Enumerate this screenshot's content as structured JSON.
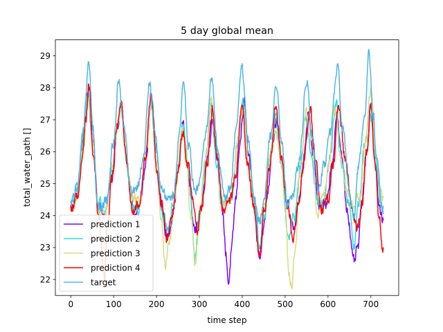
{
  "chart_data": {
    "type": "line",
    "title": "5 day global mean",
    "xlabel": "time step",
    "ylabel": "total_water_path []",
    "xlim": [
      -36,
      765
    ],
    "ylim": [
      21.5,
      29.5
    ],
    "xticks": [
      0,
      100,
      200,
      300,
      400,
      500,
      600,
      700
    ],
    "yticks": [
      22,
      23,
      24,
      25,
      26,
      27,
      28,
      29
    ],
    "xtick_labels": [
      "0",
      "100",
      "200",
      "300",
      "400",
      "500",
      "600",
      "700"
    ],
    "ytick_labels": [
      "22",
      "23",
      "24",
      "25",
      "26",
      "27",
      "28",
      "29"
    ],
    "legend_position": "lower-left",
    "grid": false,
    "n_points": 730,
    "series": [
      {
        "name": "prediction 1",
        "color": "#8000ff",
        "anchors": [
          [
            0,
            24.2
          ],
          [
            15,
            24.6
          ],
          [
            30,
            26.3
          ],
          [
            40,
            27.9
          ],
          [
            50,
            26.5
          ],
          [
            65,
            24.3
          ],
          [
            80,
            24.0
          ],
          [
            95,
            25.2
          ],
          [
            110,
            26.8
          ],
          [
            118,
            27.4
          ],
          [
            130,
            25.8
          ],
          [
            140,
            24.6
          ],
          [
            150,
            24.0
          ],
          [
            165,
            24.4
          ],
          [
            175,
            25.8
          ],
          [
            188,
            27.6
          ],
          [
            198,
            26.2
          ],
          [
            212,
            24.2
          ],
          [
            225,
            23.3
          ],
          [
            240,
            24.2
          ],
          [
            250,
            25.4
          ],
          [
            262,
            26.9
          ],
          [
            272,
            25.6
          ],
          [
            285,
            23.9
          ],
          [
            295,
            23.6
          ],
          [
            305,
            24.3
          ],
          [
            320,
            25.9
          ],
          [
            330,
            27.0
          ],
          [
            340,
            25.9
          ],
          [
            355,
            24.0
          ],
          [
            362,
            22.8
          ],
          [
            368,
            21.9
          ],
          [
            375,
            22.9
          ],
          [
            385,
            24.5
          ],
          [
            395,
            26.4
          ],
          [
            405,
            27.5
          ],
          [
            415,
            25.7
          ],
          [
            425,
            24.5
          ],
          [
            440,
            22.8
          ],
          [
            450,
            23.6
          ],
          [
            460,
            24.8
          ],
          [
            470,
            26.3
          ],
          [
            480,
            27.0
          ],
          [
            490,
            25.6
          ],
          [
            505,
            24.3
          ],
          [
            520,
            23.6
          ],
          [
            530,
            24.2
          ],
          [
            545,
            25.9
          ],
          [
            555,
            27.3
          ],
          [
            565,
            25.9
          ],
          [
            580,
            24.2
          ],
          [
            595,
            24.4
          ],
          [
            610,
            25.6
          ],
          [
            620,
            27.2
          ],
          [
            632,
            25.8
          ],
          [
            645,
            24.2
          ],
          [
            660,
            22.5
          ],
          [
            670,
            23.0
          ],
          [
            680,
            24.5
          ],
          [
            690,
            26.0
          ],
          [
            700,
            27.5
          ],
          [
            710,
            25.7
          ],
          [
            720,
            24.2
          ],
          [
            728,
            23.8
          ]
        ]
      },
      {
        "name": "prediction 2",
        "color": "#2adddd",
        "anchors": [
          [
            0,
            24.3
          ],
          [
            15,
            24.8
          ],
          [
            30,
            26.6
          ],
          [
            40,
            27.7
          ],
          [
            50,
            26.4
          ],
          [
            65,
            24.4
          ],
          [
            80,
            24.1
          ],
          [
            95,
            25.3
          ],
          [
            110,
            26.9
          ],
          [
            118,
            27.5
          ],
          [
            130,
            25.7
          ],
          [
            145,
            24.3
          ],
          [
            160,
            24.2
          ],
          [
            175,
            25.9
          ],
          [
            188,
            27.7
          ],
          [
            200,
            25.9
          ],
          [
            215,
            24.0
          ],
          [
            228,
            23.6
          ],
          [
            240,
            24.4
          ],
          [
            252,
            25.7
          ],
          [
            262,
            26.8
          ],
          [
            275,
            25.4
          ],
          [
            290,
            22.6
          ],
          [
            300,
            24.0
          ],
          [
            315,
            25.8
          ],
          [
            328,
            27.5
          ],
          [
            340,
            25.6
          ],
          [
            352,
            24.5
          ],
          [
            362,
            24.4
          ],
          [
            375,
            24.5
          ],
          [
            390,
            26.3
          ],
          [
            402,
            27.6
          ],
          [
            415,
            25.6
          ],
          [
            430,
            24.2
          ],
          [
            440,
            23.0
          ],
          [
            452,
            24.0
          ],
          [
            465,
            25.9
          ],
          [
            478,
            27.0
          ],
          [
            492,
            25.6
          ],
          [
            508,
            23.2
          ],
          [
            522,
            24.0
          ],
          [
            535,
            25.5
          ],
          [
            548,
            27.1
          ],
          [
            562,
            25.8
          ],
          [
            575,
            24.5
          ],
          [
            590,
            24.4
          ],
          [
            605,
            25.8
          ],
          [
            618,
            27.6
          ],
          [
            632,
            25.6
          ],
          [
            648,
            24.4
          ],
          [
            660,
            23.0
          ],
          [
            672,
            24.3
          ],
          [
            685,
            26.2
          ],
          [
            698,
            27.4
          ],
          [
            712,
            25.6
          ],
          [
            722,
            24.4
          ],
          [
            728,
            24.2
          ]
        ]
      },
      {
        "name": "prediction 3",
        "color": "#d4dd80",
        "anchors": [
          [
            0,
            24.2
          ],
          [
            15,
            24.5
          ],
          [
            30,
            26.2
          ],
          [
            40,
            27.6
          ],
          [
            50,
            26.5
          ],
          [
            65,
            24.1
          ],
          [
            80,
            24.2
          ],
          [
            95,
            25.4
          ],
          [
            110,
            26.9
          ],
          [
            118,
            27.3
          ],
          [
            130,
            25.8
          ],
          [
            145,
            24.5
          ],
          [
            160,
            24.4
          ],
          [
            175,
            25.9
          ],
          [
            188,
            27.5
          ],
          [
            200,
            25.6
          ],
          [
            212,
            23.8
          ],
          [
            220,
            22.4
          ],
          [
            230,
            23.2
          ],
          [
            245,
            24.6
          ],
          [
            258,
            26.6
          ],
          [
            268,
            26.3
          ],
          [
            280,
            24.0
          ],
          [
            290,
            22.4
          ],
          [
            300,
            23.9
          ],
          [
            315,
            25.9
          ],
          [
            328,
            27.7
          ],
          [
            340,
            26.1
          ],
          [
            352,
            24.5
          ],
          [
            362,
            24.4
          ],
          [
            375,
            24.6
          ],
          [
            390,
            26.4
          ],
          [
            402,
            27.4
          ],
          [
            415,
            25.6
          ],
          [
            428,
            24.4
          ],
          [
            440,
            24.0
          ],
          [
            452,
            24.3
          ],
          [
            465,
            25.9
          ],
          [
            478,
            26.6
          ],
          [
            490,
            25.8
          ],
          [
            500,
            24.4
          ],
          [
            508,
            22.2
          ],
          [
            515,
            21.8
          ],
          [
            522,
            22.6
          ],
          [
            535,
            25.2
          ],
          [
            548,
            27.3
          ],
          [
            562,
            26.2
          ],
          [
            575,
            24.1
          ],
          [
            588,
            24.6
          ],
          [
            602,
            25.6
          ],
          [
            615,
            27.4
          ],
          [
            630,
            25.8
          ],
          [
            645,
            24.6
          ],
          [
            660,
            24.3
          ],
          [
            675,
            24.7
          ],
          [
            688,
            26.4
          ],
          [
            700,
            28.0
          ],
          [
            712,
            25.9
          ],
          [
            722,
            24.8
          ],
          [
            728,
            24.6
          ]
        ]
      },
      {
        "name": "prediction 4",
        "color": "#ff0000",
        "anchors": [
          [
            0,
            24.2
          ],
          [
            15,
            24.6
          ],
          [
            25,
            25.6
          ],
          [
            35,
            27.0
          ],
          [
            42,
            28.2
          ],
          [
            52,
            26.0
          ],
          [
            65,
            24.0
          ],
          [
            78,
            22.0
          ],
          [
            85,
            23.7
          ],
          [
            95,
            25.0
          ],
          [
            108,
            26.8
          ],
          [
            118,
            27.6
          ],
          [
            130,
            25.7
          ],
          [
            145,
            24.1
          ],
          [
            158,
            24.4
          ],
          [
            172,
            25.6
          ],
          [
            188,
            27.8
          ],
          [
            200,
            25.6
          ],
          [
            212,
            24.5
          ],
          [
            225,
            23.3
          ],
          [
            238,
            24.2
          ],
          [
            250,
            25.4
          ],
          [
            262,
            26.6
          ],
          [
            272,
            25.6
          ],
          [
            285,
            24.5
          ],
          [
            295,
            23.4
          ],
          [
            305,
            24.3
          ],
          [
            318,
            25.6
          ],
          [
            330,
            27.3
          ],
          [
            342,
            25.8
          ],
          [
            355,
            24.2
          ],
          [
            370,
            24.4
          ],
          [
            385,
            25.3
          ],
          [
            400,
            27.6
          ],
          [
            412,
            25.6
          ],
          [
            428,
            24.2
          ],
          [
            440,
            22.7
          ],
          [
            452,
            24.2
          ],
          [
            465,
            25.6
          ],
          [
            478,
            27.5
          ],
          [
            492,
            25.7
          ],
          [
            505,
            24.3
          ],
          [
            520,
            23.4
          ],
          [
            532,
            24.4
          ],
          [
            545,
            25.8
          ],
          [
            558,
            27.3
          ],
          [
            572,
            25.6
          ],
          [
            585,
            24.2
          ],
          [
            600,
            24.5
          ],
          [
            612,
            25.5
          ],
          [
            625,
            27.4
          ],
          [
            640,
            25.8
          ],
          [
            655,
            24.4
          ],
          [
            668,
            23.6
          ],
          [
            680,
            24.4
          ],
          [
            690,
            26.0
          ],
          [
            700,
            27.5
          ],
          [
            710,
            25.6
          ],
          [
            720,
            23.8
          ],
          [
            728,
            23.0
          ]
        ]
      },
      {
        "name": "target",
        "color": "#4fb5e6",
        "anchors": [
          [
            0,
            24.3
          ],
          [
            15,
            24.9
          ],
          [
            28,
            26.6
          ],
          [
            42,
            28.7
          ],
          [
            52,
            26.8
          ],
          [
            62,
            24.3
          ],
          [
            72,
            24.2
          ],
          [
            85,
            24.6
          ],
          [
            100,
            26.3
          ],
          [
            112,
            28.2
          ],
          [
            125,
            26.6
          ],
          [
            140,
            24.8
          ],
          [
            155,
            24.9
          ],
          [
            170,
            25.9
          ],
          [
            183,
            28.2
          ],
          [
            195,
            26.6
          ],
          [
            210,
            25.0
          ],
          [
            225,
            24.4
          ],
          [
            240,
            24.6
          ],
          [
            253,
            26.5
          ],
          [
            262,
            28.2
          ],
          [
            275,
            26.2
          ],
          [
            290,
            24.6
          ],
          [
            300,
            25.0
          ],
          [
            315,
            26.6
          ],
          [
            328,
            28.4
          ],
          [
            342,
            26.1
          ],
          [
            358,
            24.6
          ],
          [
            372,
            24.8
          ],
          [
            385,
            26.6
          ],
          [
            400,
            28.6
          ],
          [
            412,
            26.6
          ],
          [
            428,
            24.5
          ],
          [
            440,
            23.8
          ],
          [
            452,
            24.6
          ],
          [
            465,
            26.5
          ],
          [
            480,
            28.1
          ],
          [
            492,
            26.4
          ],
          [
            505,
            24.4
          ],
          [
            518,
            24.6
          ],
          [
            532,
            25.6
          ],
          [
            550,
            28.3
          ],
          [
            562,
            26.6
          ],
          [
            578,
            24.9
          ],
          [
            592,
            25.6
          ],
          [
            605,
            26.6
          ],
          [
            622,
            28.6
          ],
          [
            635,
            26.6
          ],
          [
            650,
            24.7
          ],
          [
            660,
            23.9
          ],
          [
            672,
            25.6
          ],
          [
            685,
            27.1
          ],
          [
            695,
            29.1
          ],
          [
            705,
            27.2
          ],
          [
            715,
            25.6
          ],
          [
            725,
            24.4
          ],
          [
            728,
            24.1
          ]
        ]
      }
    ]
  }
}
